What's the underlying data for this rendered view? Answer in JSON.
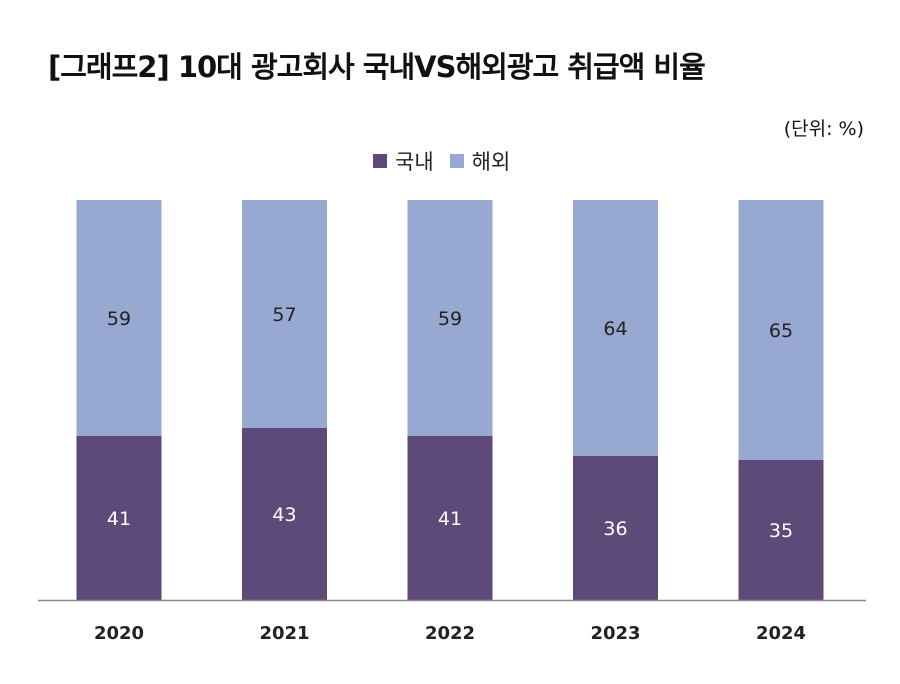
{
  "chart_data": {
    "type": "bar",
    "stacked": true,
    "title": "[그래프2] 10대 광고회사 국내VS해외광고 취급액 비율",
    "unit_label": "(단위: %)",
    "categories": [
      "2020",
      "2021",
      "2022",
      "2023",
      "2024"
    ],
    "series": [
      {
        "name": "국내",
        "color": "#5d4a78",
        "values": [
          41,
          43,
          41,
          36,
          35
        ]
      },
      {
        "name": "해외",
        "color": "#97a9d0",
        "values": [
          59,
          57,
          59,
          64,
          65
        ]
      }
    ],
    "ylim": [
      0,
      100
    ],
    "legend": "top-center",
    "grid": false,
    "data_labels": true
  }
}
